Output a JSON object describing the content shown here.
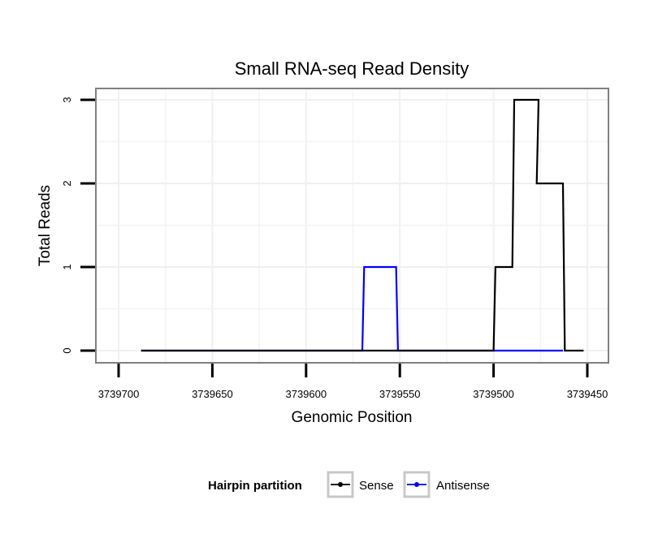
{
  "chart_data": {
    "type": "line",
    "title": "Small RNA-seq Read Density",
    "xlabel": "Genomic Position",
    "ylabel": "Total Reads",
    "x_reversed": true,
    "xlim": [
      3739700,
      3739450
    ],
    "ylim": [
      0,
      3
    ],
    "x_ticks": [
      3739700,
      3739650,
      3739600,
      3739550,
      3739500,
      3739450
    ],
    "x_tick_labels": [
      "3739700",
      "3739650",
      "3739600",
      "3739550",
      "3739500",
      "3739450"
    ],
    "y_ticks": [
      0,
      1,
      2,
      3
    ],
    "y_tick_labels": [
      "0",
      "1",
      "2",
      "3"
    ],
    "grid": true,
    "legend": {
      "title": "Hairpin partition",
      "placement": "bottom",
      "entries": [
        "Sense",
        "Antisense"
      ]
    },
    "series": [
      {
        "name": "Sense",
        "color": "#000000",
        "x": [
          3739688,
          3739500,
          3739499,
          3739490,
          3739489,
          3739476,
          3739477,
          3739463,
          3739462,
          3739452
        ],
        "y": [
          0,
          0,
          1,
          1,
          3,
          3,
          2,
          2,
          0,
          0
        ]
      },
      {
        "name": "Antisense",
        "color": "#0000ff",
        "x": [
          3739688,
          3739570,
          3739569,
          3739552,
          3739551,
          3739463
        ],
        "y": [
          0,
          0,
          1,
          1,
          0,
          0
        ]
      }
    ]
  }
}
